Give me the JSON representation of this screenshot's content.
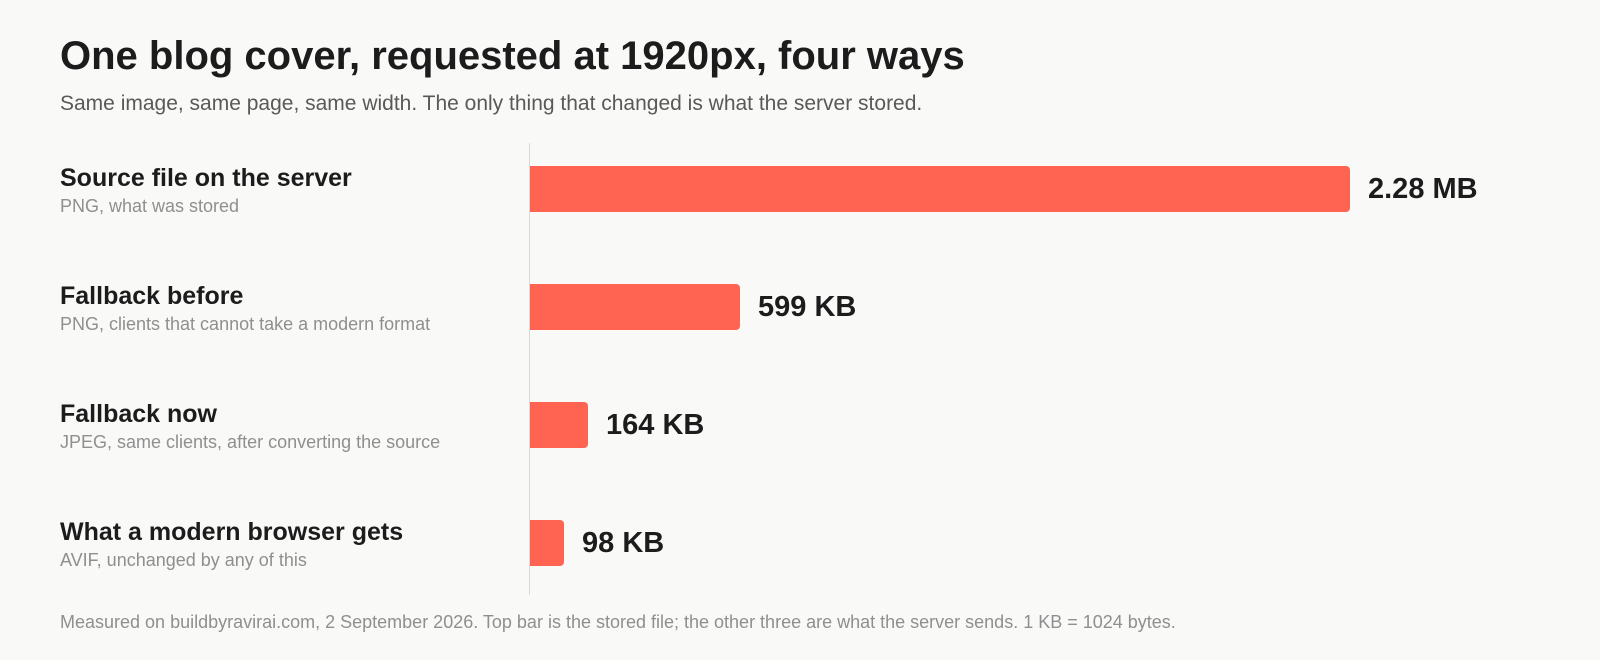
{
  "chart_data": {
    "type": "bar",
    "orientation": "horizontal",
    "title": "One blog cover, requested at 1920px, four ways",
    "subtitle": "Same image, same page, same width. The only thing that changed is what the server stored.",
    "categories": [
      "Source file on the server",
      "Fallback before",
      "Fallback now",
      "What a modern browser gets"
    ],
    "category_notes": [
      "PNG, what was stored",
      "PNG, clients that cannot take a modern format",
      "JPEG, same clients, after converting the source",
      "AVIF, unchanged by any of this"
    ],
    "values_kb": [
      2335,
      599,
      164,
      98
    ],
    "value_labels": [
      "2.28 MB",
      "599 KB",
      "164 KB",
      "98 KB"
    ],
    "unit": "KB",
    "grid": false,
    "legend": "none",
    "bar_color": "#ff6452",
    "footnote": "Measured on buildbyravirai.com, 2 September 2026. Top bar is the stored file; the other three are what the server sends. 1 KB = 1024 bytes."
  }
}
